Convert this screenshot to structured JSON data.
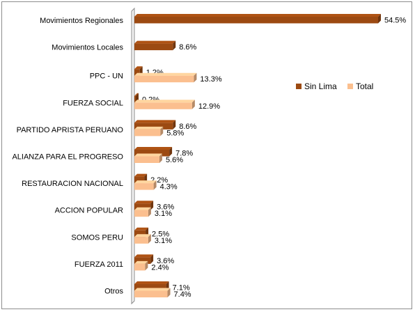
{
  "chart_data": {
    "type": "bar",
    "orientation": "horizontal",
    "categories": [
      "Movimientos Regionales",
      "Movimientos Locales",
      "PPC - UN",
      "FUERZA SOCIAL",
      "PARTIDO APRISTA PERUANO",
      "ALIANZA PARA EL PROGRESO",
      "RESTAURACION  NACIONAL",
      "ACCION POPULAR",
      "SOMOS PERU",
      "FUERZA 2011",
      "Otros"
    ],
    "series": [
      {
        "name": "Sin Lima",
        "color": "#9c4a12",
        "values": [
          54.5,
          8.6,
          1.2,
          0.2,
          8.6,
          7.8,
          2.2,
          3.6,
          2.5,
          3.6,
          7.1
        ],
        "labels": [
          "54.5%",
          "8.6%",
          "1.2%",
          "0.2%",
          "8.6%",
          "7.8%",
          "2.2%",
          "3.6%",
          "2.5%",
          "3.6%",
          "7.1%"
        ]
      },
      {
        "name": "Total",
        "color": "#fbbf8f",
        "values": [
          null,
          null,
          13.3,
          12.9,
          5.8,
          5.6,
          4.3,
          3.1,
          3.1,
          2.4,
          7.4
        ],
        "labels": [
          "",
          "",
          "13.3%",
          "12.9%",
          "5.8%",
          "5.6%",
          "4.3%",
          "3.1%",
          "3.1%",
          "2.4%",
          "7.4%"
        ]
      }
    ],
    "xlim": [
      0,
      54.5
    ],
    "grid": false,
    "legend_position": "right"
  }
}
